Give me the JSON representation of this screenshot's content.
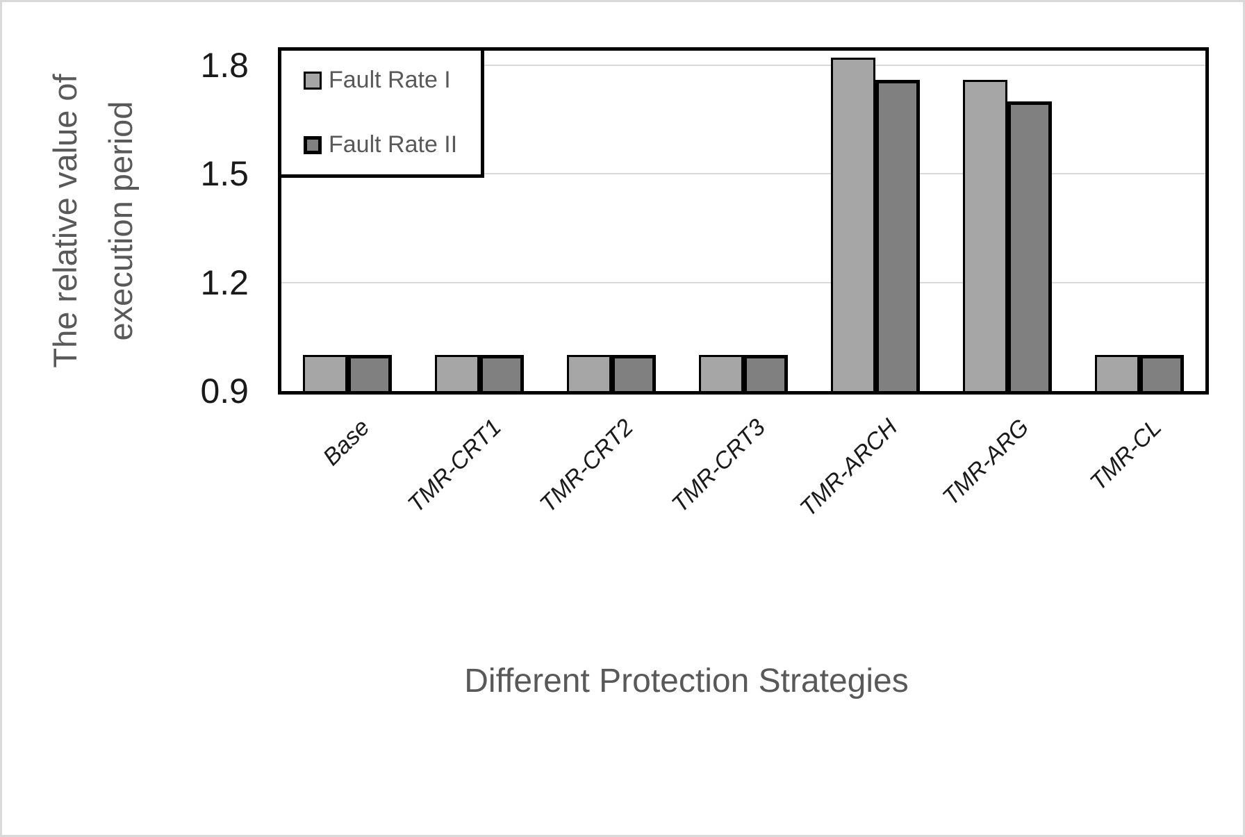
{
  "y_axis": {
    "title_line1": "The relative value of",
    "title_line2": "execution period"
  },
  "chart_data": {
    "type": "bar",
    "title": "",
    "xlabel": "Different Protection Strategies",
    "ylabel": "The relative value of execution period",
    "categories": [
      "Base",
      "TMR-CRT1",
      "TMR-CRT2",
      "TMR-CRT3",
      "TMR-ARCH",
      "TMR-ARG",
      "TMR-CL"
    ],
    "series": [
      {
        "name": "Fault Rate I",
        "color": "#a6a6a6",
        "values": [
          1.0,
          1.0,
          1.0,
          1.0,
          1.82,
          1.76,
          1.0
        ]
      },
      {
        "name": "Fault Rate II",
        "color": "#808080",
        "values": [
          1.0,
          1.0,
          1.0,
          1.0,
          1.76,
          1.7,
          1.0
        ]
      }
    ],
    "yticks": [
      0.9,
      1.2,
      1.5,
      1.8
    ],
    "ytick_labels": [
      "0.9",
      "1.2",
      "1.5",
      "1.8"
    ],
    "ylim": [
      0.9,
      1.84
    ],
    "grid": true,
    "legend_position": "top-left-inside"
  },
  "colors": {
    "series1_fill": "#a6a6a6",
    "series2_fill": "#808080",
    "bar_outline": "#000000",
    "gridline": "#d9d9d9",
    "axis_line": "#000000",
    "axis_title_text": "#595959",
    "tick_text": "#1a1a1a",
    "canvas_border": "#d9d9d9"
  }
}
